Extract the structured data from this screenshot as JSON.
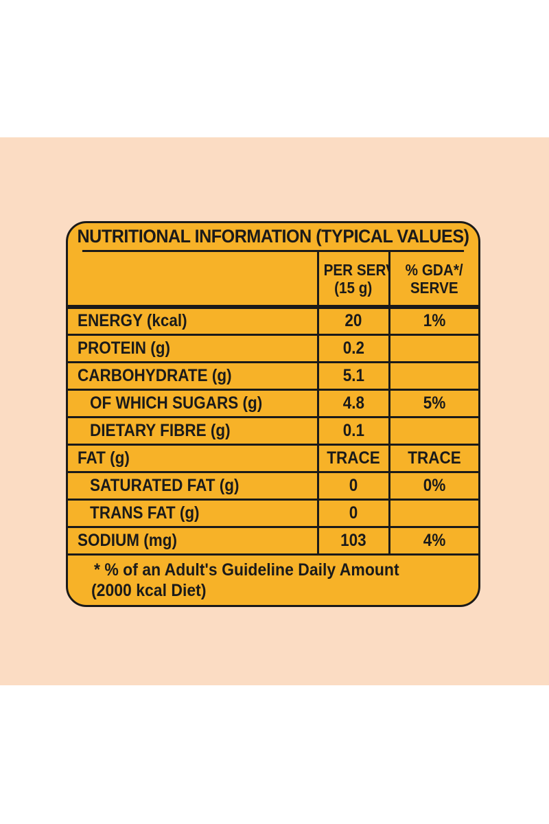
{
  "colors": {
    "page_background": "#ffffff",
    "backdrop": "#fbdcc3",
    "panel_fill": "#f7b228",
    "ink": "#1a1a1a"
  },
  "label": {
    "title": "NUTRITIONAL INFORMATION (TYPICAL VALUES)",
    "columns": {
      "per_serve_line1": "PER SERVE",
      "per_serve_line2": "(15 g)",
      "gda_line1": "% GDA*/",
      "gda_line2": "SERVE"
    },
    "rows": [
      {
        "name": "ENERGY (kcal)",
        "per_serve": "20",
        "gda": "1%"
      },
      {
        "name": "PROTEIN (g)",
        "per_serve": "0.2",
        "gda": ""
      },
      {
        "name": "CARBOHYDRATE (g)",
        "per_serve": "5.1",
        "gda": ""
      },
      {
        "name": "OF WHICH SUGARS (g)",
        "per_serve": "4.8",
        "gda": "5%"
      },
      {
        "name": "DIETARY FIBRE (g)",
        "per_serve": "0.1",
        "gda": ""
      },
      {
        "name": "FAT (g)",
        "per_serve": "TRACE",
        "gda": "TRACE"
      },
      {
        "name": "SATURATED FAT (g)",
        "per_serve": "0",
        "gda": "0%"
      },
      {
        "name": "TRANS FAT (g)",
        "per_serve": "0",
        "gda": ""
      },
      {
        "name": "SODIUM (mg)",
        "per_serve": "103",
        "gda": "4%"
      }
    ],
    "footnote_line1": "* % of an Adult's Guideline Daily Amount",
    "footnote_line2": "(2000 kcal Diet)"
  }
}
